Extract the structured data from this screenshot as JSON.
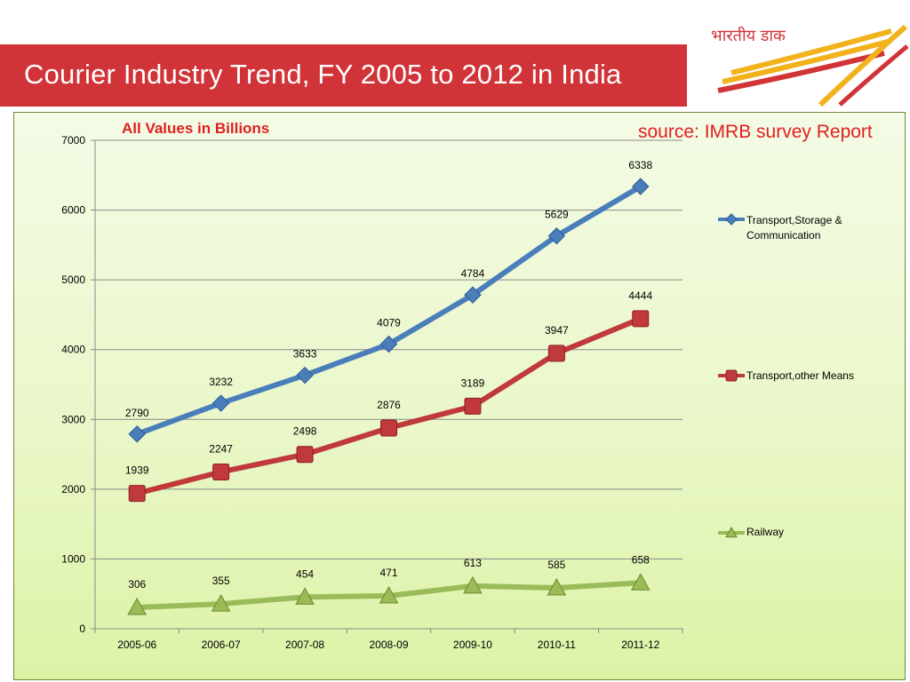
{
  "slide": {
    "title": "Courier Industry Trend, FY 2005 to 2012 in India",
    "logo_text": "भारतीय डाक",
    "note_left": "All Values in Billions",
    "note_right": "source: IMRB survey Report"
  },
  "colors": {
    "banner": "#d13438",
    "series_1": "#4a7ebb",
    "series_2": "#c0393b",
    "series_3": "#9bbb59"
  },
  "chart_data": {
    "type": "line",
    "categories": [
      "2005-06",
      "2006-07",
      "2007-08",
      "2008-09",
      "2009-10",
      "2010-11",
      "2011-12"
    ],
    "ylim": [
      0,
      7000
    ],
    "yticks": [
      "0",
      "1000",
      "2000",
      "3000",
      "4000",
      "5000",
      "6000",
      "7000"
    ],
    "grid": true,
    "legend_position": "right",
    "series": [
      {
        "name": "Transport,Storage & Communication",
        "marker": "diamond",
        "values": [
          2790,
          3232,
          3633,
          4079,
          4784,
          5629,
          6338
        ]
      },
      {
        "name": "Transport,other Means",
        "marker": "square",
        "values": [
          1939,
          2247,
          2498,
          2876,
          3189,
          3947,
          4444
        ]
      },
      {
        "name": "Railway",
        "marker": "triangle",
        "values": [
          306,
          355,
          454,
          471,
          613,
          585,
          658
        ]
      }
    ]
  }
}
